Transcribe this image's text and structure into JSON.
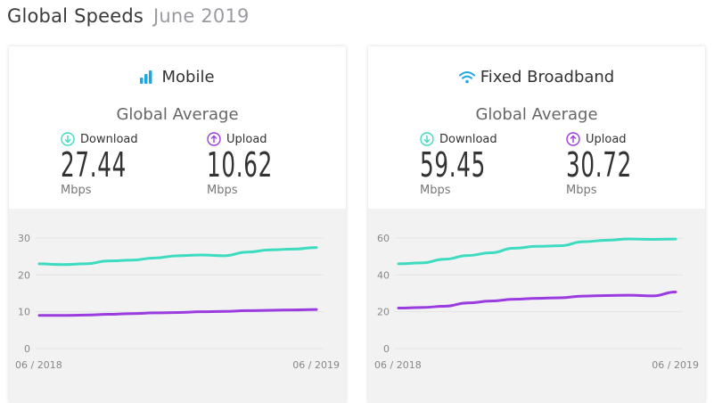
{
  "header": {
    "title": "Global Speeds",
    "subtitle": "June 2019"
  },
  "colors": {
    "download": "#3ddbc0",
    "upload": "#9b3ce0",
    "wifi": "#1fa7e0",
    "bars": "#1fa7e0"
  },
  "cards": [
    {
      "title": "Mobile",
      "icon": "signal-bars-icon",
      "avg_label": "Global Average",
      "download": {
        "label": "Download",
        "value": "27.44",
        "unit": "Mbps"
      },
      "upload": {
        "label": "Upload",
        "value": "10.62",
        "unit": "Mbps"
      },
      "x_start_label": "06 / 2018",
      "x_end_label": "06 / 2019"
    },
    {
      "title": "Fixed Broadband",
      "icon": "wifi-icon",
      "avg_label": "Global Average",
      "download": {
        "label": "Download",
        "value": "59.45",
        "unit": "Mbps"
      },
      "upload": {
        "label": "Upload",
        "value": "30.72",
        "unit": "Mbps"
      },
      "x_start_label": "06 / 2018",
      "x_end_label": "06 / 2019"
    }
  ],
  "chart_data": [
    {
      "type": "line",
      "x": [
        "06 / 2018",
        "07 / 2018",
        "08 / 2018",
        "09 / 2018",
        "10 / 2018",
        "11 / 2018",
        "12 / 2018",
        "01 / 2019",
        "02 / 2019",
        "03 / 2019",
        "04 / 2019",
        "05 / 2019",
        "06 / 2019"
      ],
      "xtick_labels": [
        "06 / 2018",
        "06 / 2019"
      ],
      "ylim": [
        0,
        30
      ],
      "yticks": [
        0,
        10,
        20,
        30
      ],
      "series": [
        {
          "key": "download",
          "values": [
            23.0,
            22.8,
            23.0,
            23.8,
            24.0,
            24.6,
            25.2,
            25.4,
            25.2,
            26.2,
            26.8,
            27.0,
            27.44
          ]
        },
        {
          "key": "upload",
          "values": [
            9.0,
            9.0,
            9.1,
            9.3,
            9.5,
            9.7,
            9.8,
            10.0,
            10.1,
            10.3,
            10.4,
            10.5,
            10.62
          ]
        }
      ]
    },
    {
      "type": "line",
      "x": [
        "06 / 2018",
        "07 / 2018",
        "08 / 2018",
        "09 / 2018",
        "10 / 2018",
        "11 / 2018",
        "12 / 2018",
        "01 / 2019",
        "02 / 2019",
        "03 / 2019",
        "04 / 2019",
        "05 / 2019",
        "06 / 2019"
      ],
      "xtick_labels": [
        "06 / 2018",
        "06 / 2019"
      ],
      "ylim": [
        0,
        60
      ],
      "yticks": [
        0,
        20,
        40,
        60
      ],
      "series": [
        {
          "key": "download",
          "values": [
            46.0,
            46.5,
            48.5,
            50.5,
            52.0,
            54.5,
            55.5,
            55.8,
            58.0,
            58.8,
            59.5,
            59.3,
            59.45
          ]
        },
        {
          "key": "upload",
          "values": [
            22.0,
            22.3,
            23.0,
            24.8,
            25.8,
            26.8,
            27.3,
            27.6,
            28.5,
            28.8,
            29.0,
            28.6,
            30.72
          ]
        }
      ]
    }
  ]
}
